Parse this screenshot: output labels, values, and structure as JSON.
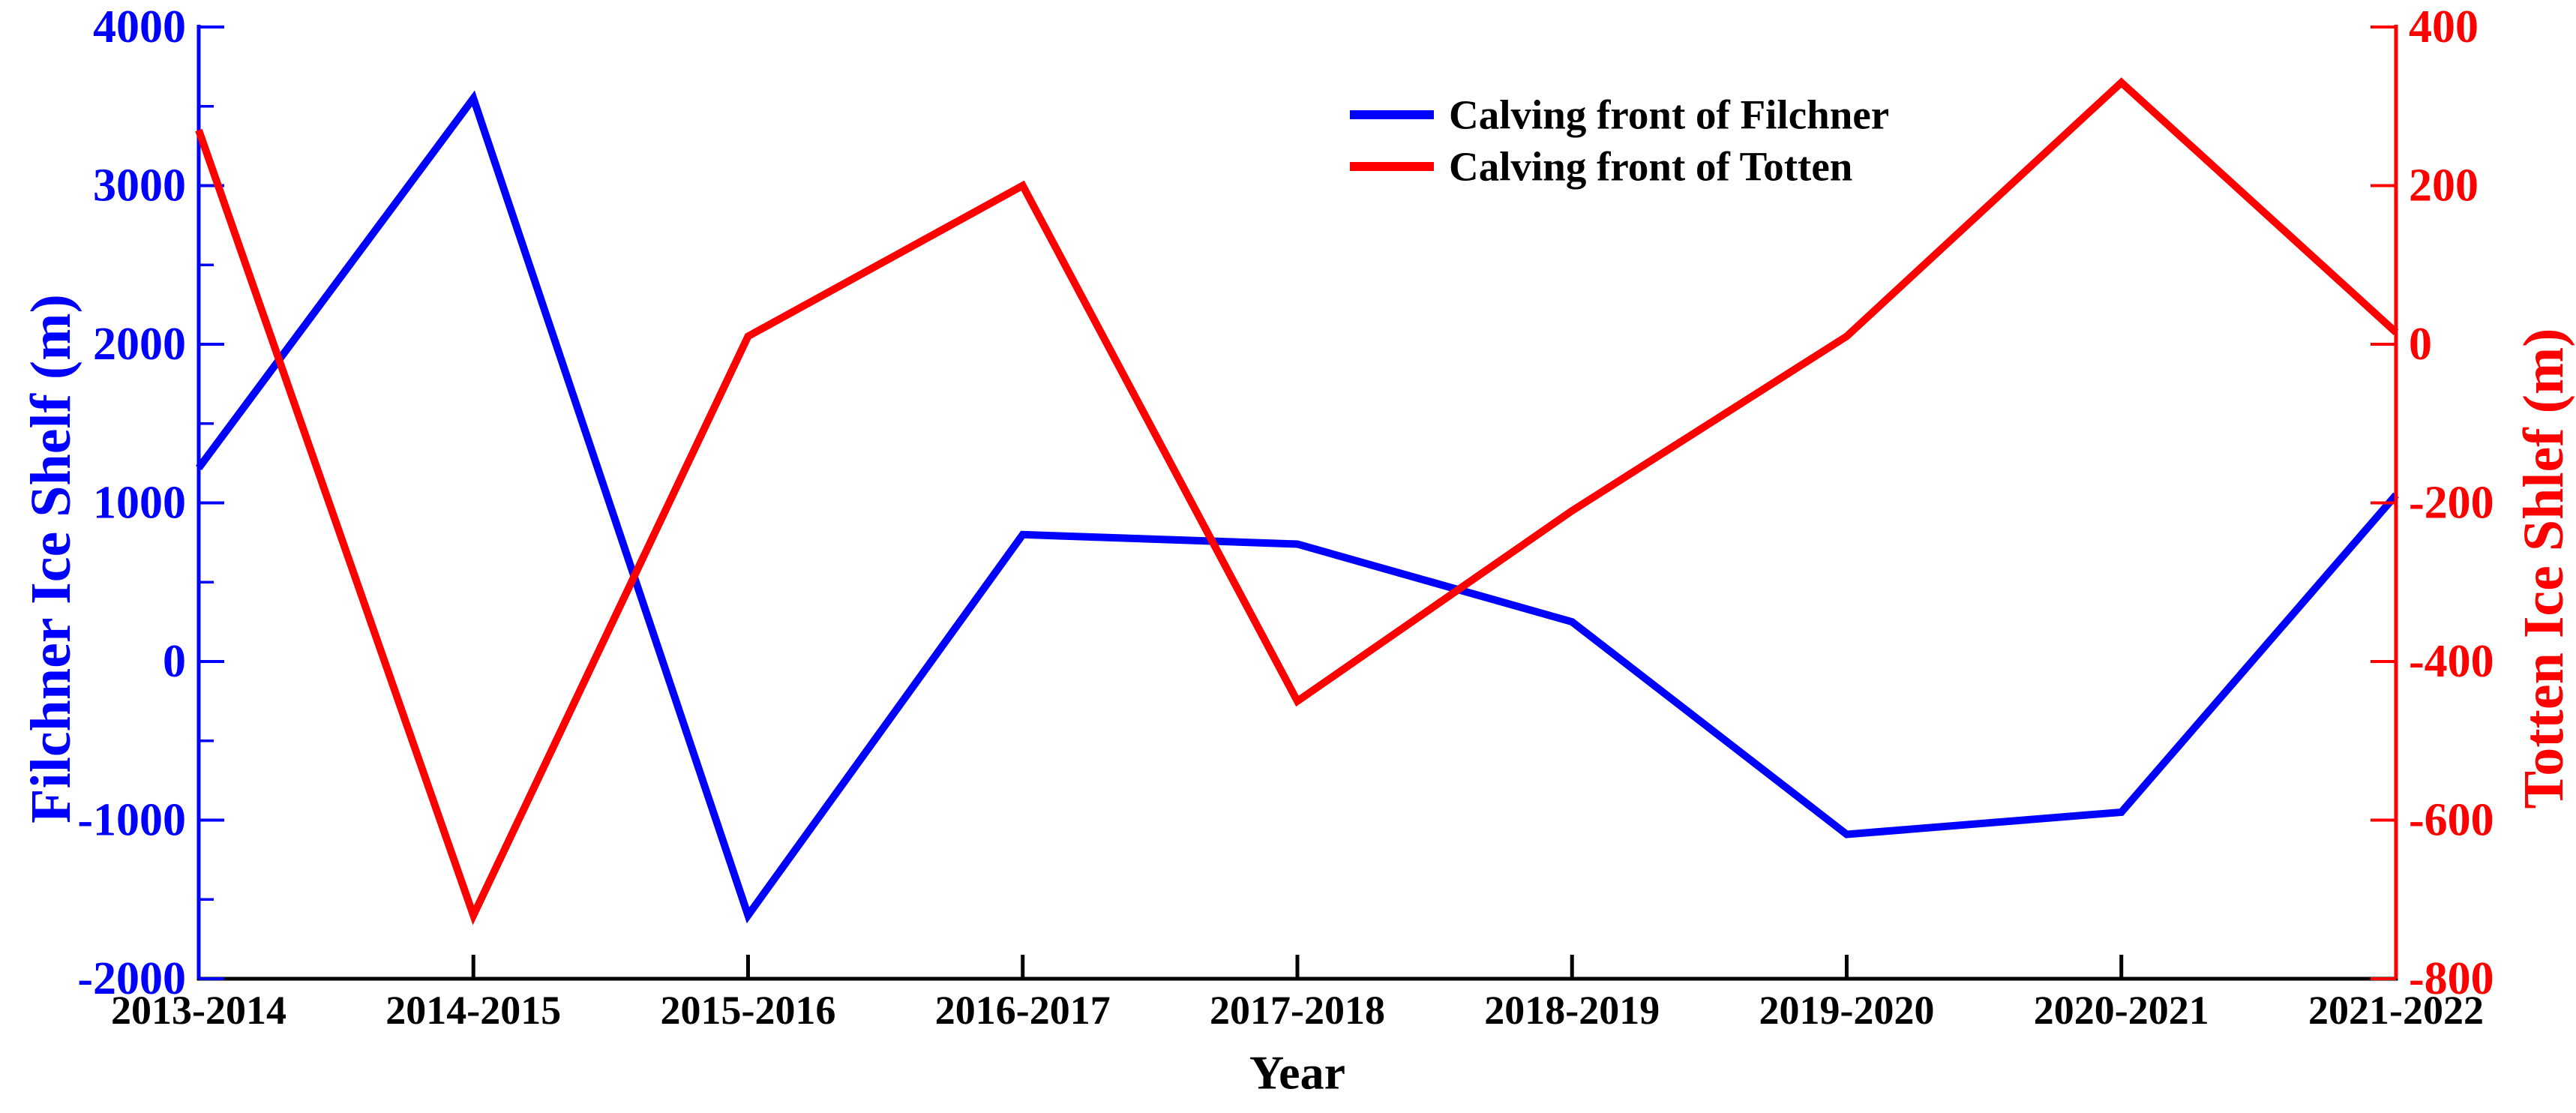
{
  "chart_data": {
    "type": "line",
    "title": "",
    "x_categories": [
      "2013-2014",
      "2014-2015",
      "2015-2016",
      "2016-2017",
      "2017-2018",
      "2018-2019",
      "2019-2020",
      "2020-2021",
      "2021-2022"
    ],
    "xlabel": "Year",
    "series": [
      {
        "name": "Calving front of Filchner",
        "axis": "left",
        "color": "#0000ff",
        "values": [
          1220,
          3550,
          -1600,
          800,
          740,
          250,
          -1090,
          -950,
          1050
        ]
      },
      {
        "name": "Calving front of Totten",
        "axis": "right",
        "color": "#ff0000",
        "values": [
          270,
          -720,
          10,
          200,
          -450,
          -210,
          10,
          330,
          15
        ]
      }
    ],
    "left_axis": {
      "label": "Filchner Ice Shelf (m)",
      "color": "#0000ff",
      "min": -2000,
      "max": 4000,
      "tick_values": [
        4000,
        3000,
        2000,
        1000,
        0,
        -1000,
        -2000
      ],
      "tick_labels": [
        "4000",
        "3000",
        "2000",
        "1000",
        "0",
        "-1000",
        "-2000"
      ],
      "minor_tick_values": [
        3500,
        2500,
        1500,
        500,
        -500,
        -1500
      ]
    },
    "right_axis": {
      "label": "Totten Ice Shlef (m)",
      "color": "#ff0000",
      "min": -800,
      "max": 400,
      "tick_values": [
        400,
        200,
        0,
        -200,
        -400,
        -600,
        -800
      ],
      "tick_labels": [
        "400",
        "200",
        "0",
        "-200",
        "-400",
        "-600",
        "-800"
      ],
      "minor_tick_values": []
    },
    "x_axis_color": "#000000",
    "legend": {
      "position": "top-center",
      "items": [
        {
          "label": "Calving front of Filchner",
          "color": "#0000ff"
        },
        {
          "label": "Calving front of Totten",
          "color": "#ff0000"
        }
      ]
    },
    "grid": false,
    "background": "#ffffff"
  }
}
